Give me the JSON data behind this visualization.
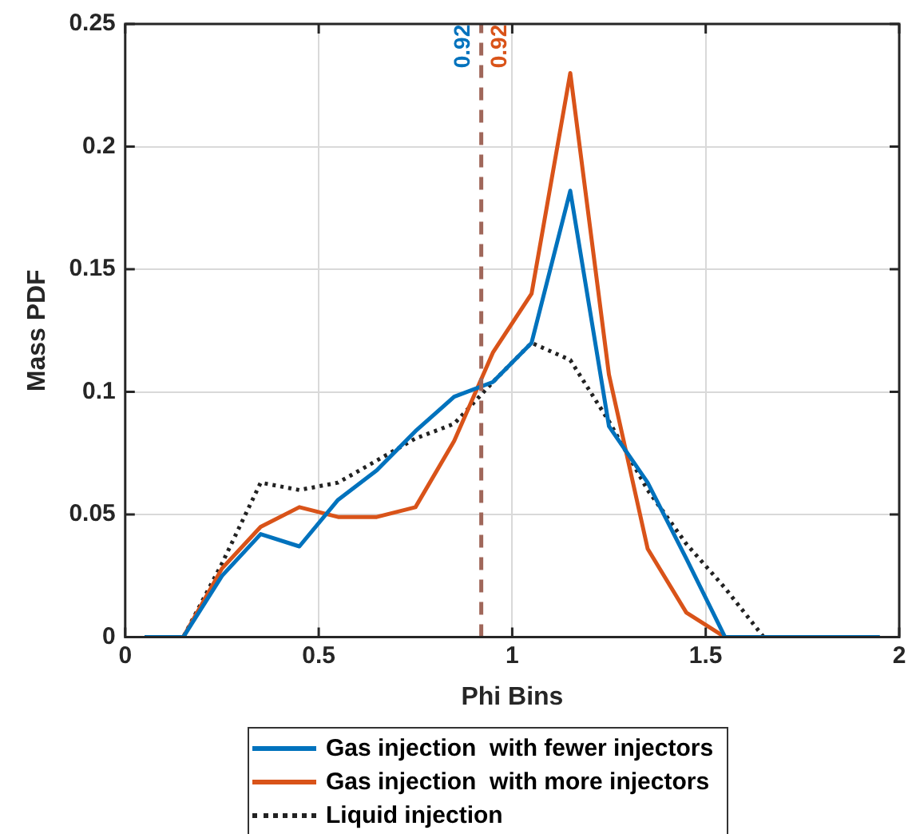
{
  "chart_data": {
    "type": "line",
    "xlabel": "Phi Bins",
    "ylabel": "Mass PDF",
    "x": [
      0.05,
      0.15,
      0.25,
      0.35,
      0.45,
      0.55,
      0.65,
      0.75,
      0.85,
      0.95,
      1.05,
      1.15,
      1.25,
      1.35,
      1.45,
      1.55,
      1.65,
      1.75,
      1.85,
      1.95
    ],
    "series": [
      {
        "name": "Gas injection  with fewer injectors",
        "color": "#0072bd",
        "line_style": "solid",
        "values": [
          0,
          0,
          0.025,
          0.042,
          0.037,
          0.056,
          0.068,
          0.084,
          0.098,
          0.104,
          0.12,
          0.182,
          0.086,
          0.063,
          0.032,
          0,
          0,
          0,
          0,
          0
        ]
      },
      {
        "name": "Gas injection  with more injectors",
        "color": "#d95319",
        "line_style": "solid",
        "values": [
          0,
          0,
          0.028,
          0.045,
          0.053,
          0.049,
          0.049,
          0.053,
          0.08,
          0.116,
          0.14,
          0.23,
          0.107,
          0.036,
          0.01,
          0,
          0,
          null,
          null,
          null
        ]
      },
      {
        "name": "Liquid injection",
        "color": "#222222",
        "line_style": "dotted",
        "values": [
          0,
          0,
          0.03,
          0.063,
          0.06,
          0.063,
          0.072,
          0.081,
          0.087,
          0.104,
          0.12,
          0.113,
          0.088,
          0.06,
          0.038,
          0.02,
          0,
          0,
          0,
          0
        ]
      }
    ],
    "xlim": [
      0,
      2
    ],
    "xticks": [
      0,
      0.5,
      1,
      1.5,
      2
    ],
    "ylim": [
      0,
      0.25
    ],
    "yticks": [
      0,
      0.05,
      0.1,
      0.15,
      0.2,
      0.25
    ],
    "ref_lines": [
      {
        "axis": "x",
        "value": 0.92,
        "color": "#a0675a",
        "line_style": "dashed"
      }
    ],
    "annotations": [
      "0.92",
      "0.92"
    ],
    "grid": true,
    "legend": "bottom",
    "marker": "none"
  }
}
